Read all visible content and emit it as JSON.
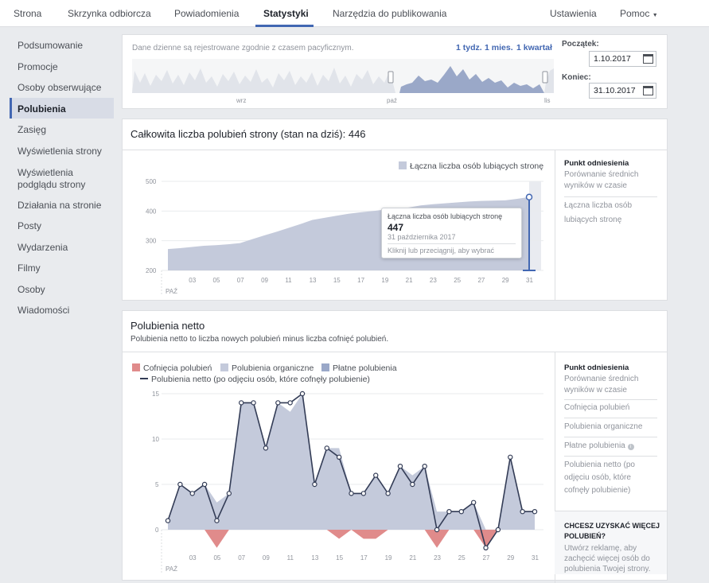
{
  "nav": {
    "tabs": [
      "Strona",
      "Skrzynka odbiorcza",
      "Powiadomienia",
      "Statystyki",
      "Narzędzia do publikowania"
    ],
    "settings": "Ustawienia",
    "help": "Pomoc"
  },
  "sidebar": {
    "items": [
      "Podsumowanie",
      "Promocje",
      "Osoby obserwujące",
      "Polubienia",
      "Zasięg",
      "Wyświetlenia strony",
      "Wyświetlenia podglądu strony",
      "Działania na stronie",
      "Posty",
      "Wydarzenia",
      "Filmy",
      "Osoby",
      "Wiadomości"
    ],
    "selected": "Polubienia"
  },
  "range": {
    "note": "Dane dzienne są rejestrowane zgodnie z czasem pacyficznym.",
    "presets": [
      "1 tydz.",
      "1 mies.",
      "1 kwartał"
    ],
    "start_label": "Początek:",
    "start": "1.10.2017",
    "end_label": "Koniec:",
    "end": "31.10.2017",
    "mini_ticks": [
      "wrz",
      "paź",
      "lis"
    ]
  },
  "total": {
    "title": "Całkowita liczba polubień strony (stan na dziś): 446",
    "legend": "Łączna liczba osób lubiących stronę",
    "tooltip": {
      "title": "Łączna liczba osób lubiących stronę",
      "value": "447",
      "date": "31 października 2017",
      "hint": "Kliknij lub przeciągnij, aby wybrać"
    },
    "benchmark": {
      "title": "Punkt odniesienia",
      "subtitle": "Porównanie średnich wyników w czasie",
      "items": [
        "Łączna liczba osób lubiących stronę"
      ]
    }
  },
  "net": {
    "title": "Polubienia netto",
    "subtitle": "Polubienia netto to liczba nowych polubień minus liczba cofnięć polubień.",
    "legend": [
      "Cofnięcia polubień",
      "Polubienia organiczne",
      "Płatne polubienia",
      "Polubienia netto (po odjęciu osób, które cofnęły polubienie)"
    ],
    "benchmark": {
      "title": "Punkt odniesienia",
      "subtitle": "Porównanie średnich wyników w czasie",
      "items": [
        "Cofnięcia polubień",
        "Polubienia organiczne",
        "Płatne polubienia",
        "Polubienia netto (po odjęciu osób, które cofnęły polubienie)"
      ]
    },
    "promo": {
      "title": "CHCESZ UZYSKAĆ WIĘCEJ POLUBIEŃ?",
      "text": "Utwórz reklamę, aby zachęcić więcej osób do polubienia Twojej strony."
    }
  },
  "colors": {
    "accent": "#4267b2",
    "area": "#c4cadb",
    "paid": "#9aa8c8",
    "unlikes": "#e08b8b",
    "line": "#333c56"
  },
  "chart_data": [
    {
      "type": "area",
      "title": "Całkowita liczba polubień strony (stan na dziś): 446",
      "x": [
        1,
        2,
        3,
        4,
        5,
        6,
        7,
        8,
        9,
        10,
        11,
        12,
        13,
        14,
        15,
        16,
        17,
        18,
        19,
        20,
        21,
        22,
        23,
        24,
        25,
        26,
        27,
        28,
        29,
        30,
        31
      ],
      "x_ticks": [
        "03",
        "05",
        "07",
        "09",
        "11",
        "13",
        "15",
        "17",
        "19",
        "21",
        "23",
        "25",
        "27",
        "29",
        "31"
      ],
      "x_month": "PAŹ",
      "series": [
        {
          "name": "Łączna liczba osób lubiących stronę",
          "values": [
            272,
            275,
            279,
            283,
            285,
            288,
            292,
            305,
            318,
            330,
            343,
            356,
            370,
            377,
            384,
            391,
            396,
            400,
            405,
            408,
            412,
            419,
            423,
            426,
            429,
            432,
            434,
            435,
            436,
            441,
            447
          ]
        }
      ],
      "ylim": [
        200,
        500
      ],
      "y_ticks": [
        200,
        300,
        400,
        500
      ]
    },
    {
      "type": "line",
      "title": "Polubienia netto",
      "x": [
        1,
        2,
        3,
        4,
        5,
        6,
        7,
        8,
        9,
        10,
        11,
        12,
        13,
        14,
        15,
        16,
        17,
        18,
        19,
        20,
        21,
        22,
        23,
        24,
        25,
        26,
        27,
        28,
        29,
        30,
        31
      ],
      "x_ticks": [
        "03",
        "05",
        "07",
        "09",
        "11",
        "13",
        "15",
        "17",
        "19",
        "21",
        "23",
        "25",
        "27",
        "29",
        "31"
      ],
      "x_month": "PAŹ",
      "series": [
        {
          "name": "Polubienia netto (po odjęciu osób, które cofnęły polubienie)",
          "values": [
            1,
            5,
            4,
            5,
            1,
            4,
            14,
            14,
            9,
            14,
            14,
            15,
            5,
            9,
            8,
            4,
            4,
            6,
            4,
            7,
            5,
            7,
            0,
            2,
            2,
            3,
            -2,
            0,
            8,
            2,
            2
          ]
        },
        {
          "name": "Polubienia organiczne",
          "values": [
            1,
            5,
            4,
            5,
            3,
            4,
            14,
            14,
            9,
            14,
            13,
            15,
            5,
            9,
            9,
            4,
            4,
            6,
            4,
            7,
            6,
            7,
            2,
            2,
            2,
            3,
            0,
            0,
            8,
            2,
            2
          ]
        },
        {
          "name": "Cofnięcia polubień",
          "values": [
            0,
            0,
            0,
            0,
            -2,
            0,
            0,
            0,
            0,
            0,
            0,
            0,
            0,
            0,
            -1,
            0,
            -1,
            -1,
            0,
            0,
            0,
            0,
            -2,
            0,
            0,
            0,
            -2,
            0,
            0,
            0,
            0
          ]
        }
      ],
      "ylim": [
        -2,
        15
      ],
      "y_ticks": [
        0,
        5,
        10,
        15
      ]
    }
  ]
}
